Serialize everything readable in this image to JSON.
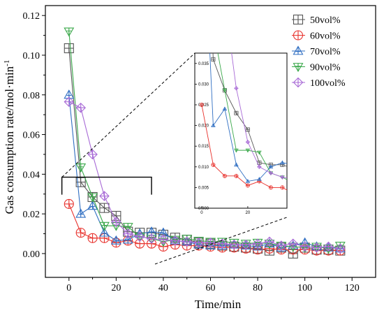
{
  "chart_data": {
    "type": "scatter",
    "title": "",
    "xlabel": "Time/min",
    "ylabel": "Gas consumption rate/mol·min",
    "ylabel_sup": "-1",
    "xlim": [
      -10,
      130
    ],
    "ylim": [
      -0.012,
      0.125
    ],
    "xticks": [
      "0",
      "20",
      "40",
      "60",
      "80",
      "100",
      "120"
    ],
    "yticks": [
      "0.00",
      "0.02",
      "0.04",
      "0.06",
      "0.08",
      "0.10",
      "0.12"
    ],
    "legend_position": "top-right",
    "series": [
      {
        "name": "50vol%",
        "color": "#555555",
        "marker": "square-plus",
        "x": [
          0,
          5,
          10,
          15,
          20,
          25,
          30,
          35,
          40,
          45,
          50,
          55,
          60,
          65,
          70,
          75,
          80,
          85,
          90,
          95,
          100,
          105,
          110,
          115
        ],
        "y": [
          0.1035,
          0.036,
          0.0285,
          0.023,
          0.019,
          0.011,
          0.0105,
          0.0105,
          0.0095,
          0.008,
          0.007,
          0.0055,
          0.005,
          0.004,
          0.0035,
          0.003,
          0.0025,
          0.0015,
          0.003,
          0.0,
          0.003,
          0.002,
          0.002,
          0.0015
        ]
      },
      {
        "name": "60vol%",
        "color": "#e8322d",
        "marker": "circle-plus",
        "x": [
          0,
          5,
          10,
          15,
          20,
          25,
          30,
          35,
          40,
          45,
          50,
          55,
          60,
          65,
          70,
          75,
          80,
          85,
          90,
          95,
          100,
          105,
          110,
          115
        ],
        "y": [
          0.025,
          0.0105,
          0.0078,
          0.0078,
          0.0055,
          0.0065,
          0.005,
          0.005,
          0.0035,
          0.0045,
          0.004,
          0.004,
          0.0035,
          0.003,
          0.003,
          0.0025,
          0.002,
          0.0025,
          0.002,
          0.002,
          0.002,
          0.0015,
          0.0015,
          0.0015
        ]
      },
      {
        "name": "70vol%",
        "color": "#2f6ec2",
        "marker": "triangle-up",
        "x": [
          0,
          5,
          10,
          15,
          20,
          25,
          30,
          35,
          40,
          45,
          50,
          55,
          60,
          65,
          70,
          75,
          80,
          85,
          90,
          95,
          100,
          105,
          110,
          115
        ],
        "y": [
          0.08,
          0.02,
          0.024,
          0.0105,
          0.0065,
          0.007,
          0.01,
          0.011,
          0.0105,
          0.0065,
          0.006,
          0.0045,
          0.004,
          0.004,
          0.0045,
          0.004,
          0.0035,
          0.005,
          0.003,
          0.004,
          0.0055,
          0.0035,
          0.003,
          0.0025
        ]
      },
      {
        "name": "90vol%",
        "color": "#3aa84a",
        "marker": "triangle-down",
        "x": [
          0,
          5,
          10,
          15,
          20,
          25,
          30,
          35,
          40,
          45,
          50,
          55,
          60,
          65,
          70,
          75,
          80,
          85,
          90,
          95,
          100,
          105,
          110,
          115
        ],
        "y": [
          0.112,
          0.0435,
          0.0285,
          0.014,
          0.014,
          0.0135,
          0.0085,
          0.0075,
          0.006,
          0.007,
          0.0075,
          0.0065,
          0.006,
          0.006,
          0.0055,
          0.005,
          0.0055,
          0.005,
          0.004,
          0.0035,
          0.003,
          0.0035,
          0.0025,
          0.004
        ]
      },
      {
        "name": "100vol%",
        "color": "#a86ad6",
        "marker": "diamond-plus",
        "x": [
          0,
          5,
          10,
          15,
          20,
          25,
          30,
          35,
          40,
          45,
          50,
          55,
          60,
          65,
          70,
          75,
          80,
          85,
          90,
          95,
          100,
          105,
          110,
          115
        ],
        "y": [
          0.0765,
          0.0735,
          0.05,
          0.029,
          0.016,
          0.01,
          0.0085,
          0.0075,
          0.007,
          0.0065,
          0.006,
          0.0055,
          0.0055,
          0.005,
          0.0045,
          0.0045,
          0.005,
          0.006,
          0.004,
          0.005,
          0.0035,
          0.003,
          0.0035,
          0.0025
        ]
      }
    ],
    "inset": {
      "xlim": [
        -3,
        37
      ],
      "ylim": [
        0.0,
        0.0375
      ],
      "xticks": [
        "0",
        "20"
      ],
      "yticks": [
        "0.000",
        "0.005",
        "0.010",
        "0.015",
        "0.020",
        "0.025",
        "0.030",
        "0.035"
      ],
      "zoom_box": {
        "x": [
          -3,
          35
        ],
        "y": [
          0.0,
          0.0385
        ]
      }
    }
  }
}
